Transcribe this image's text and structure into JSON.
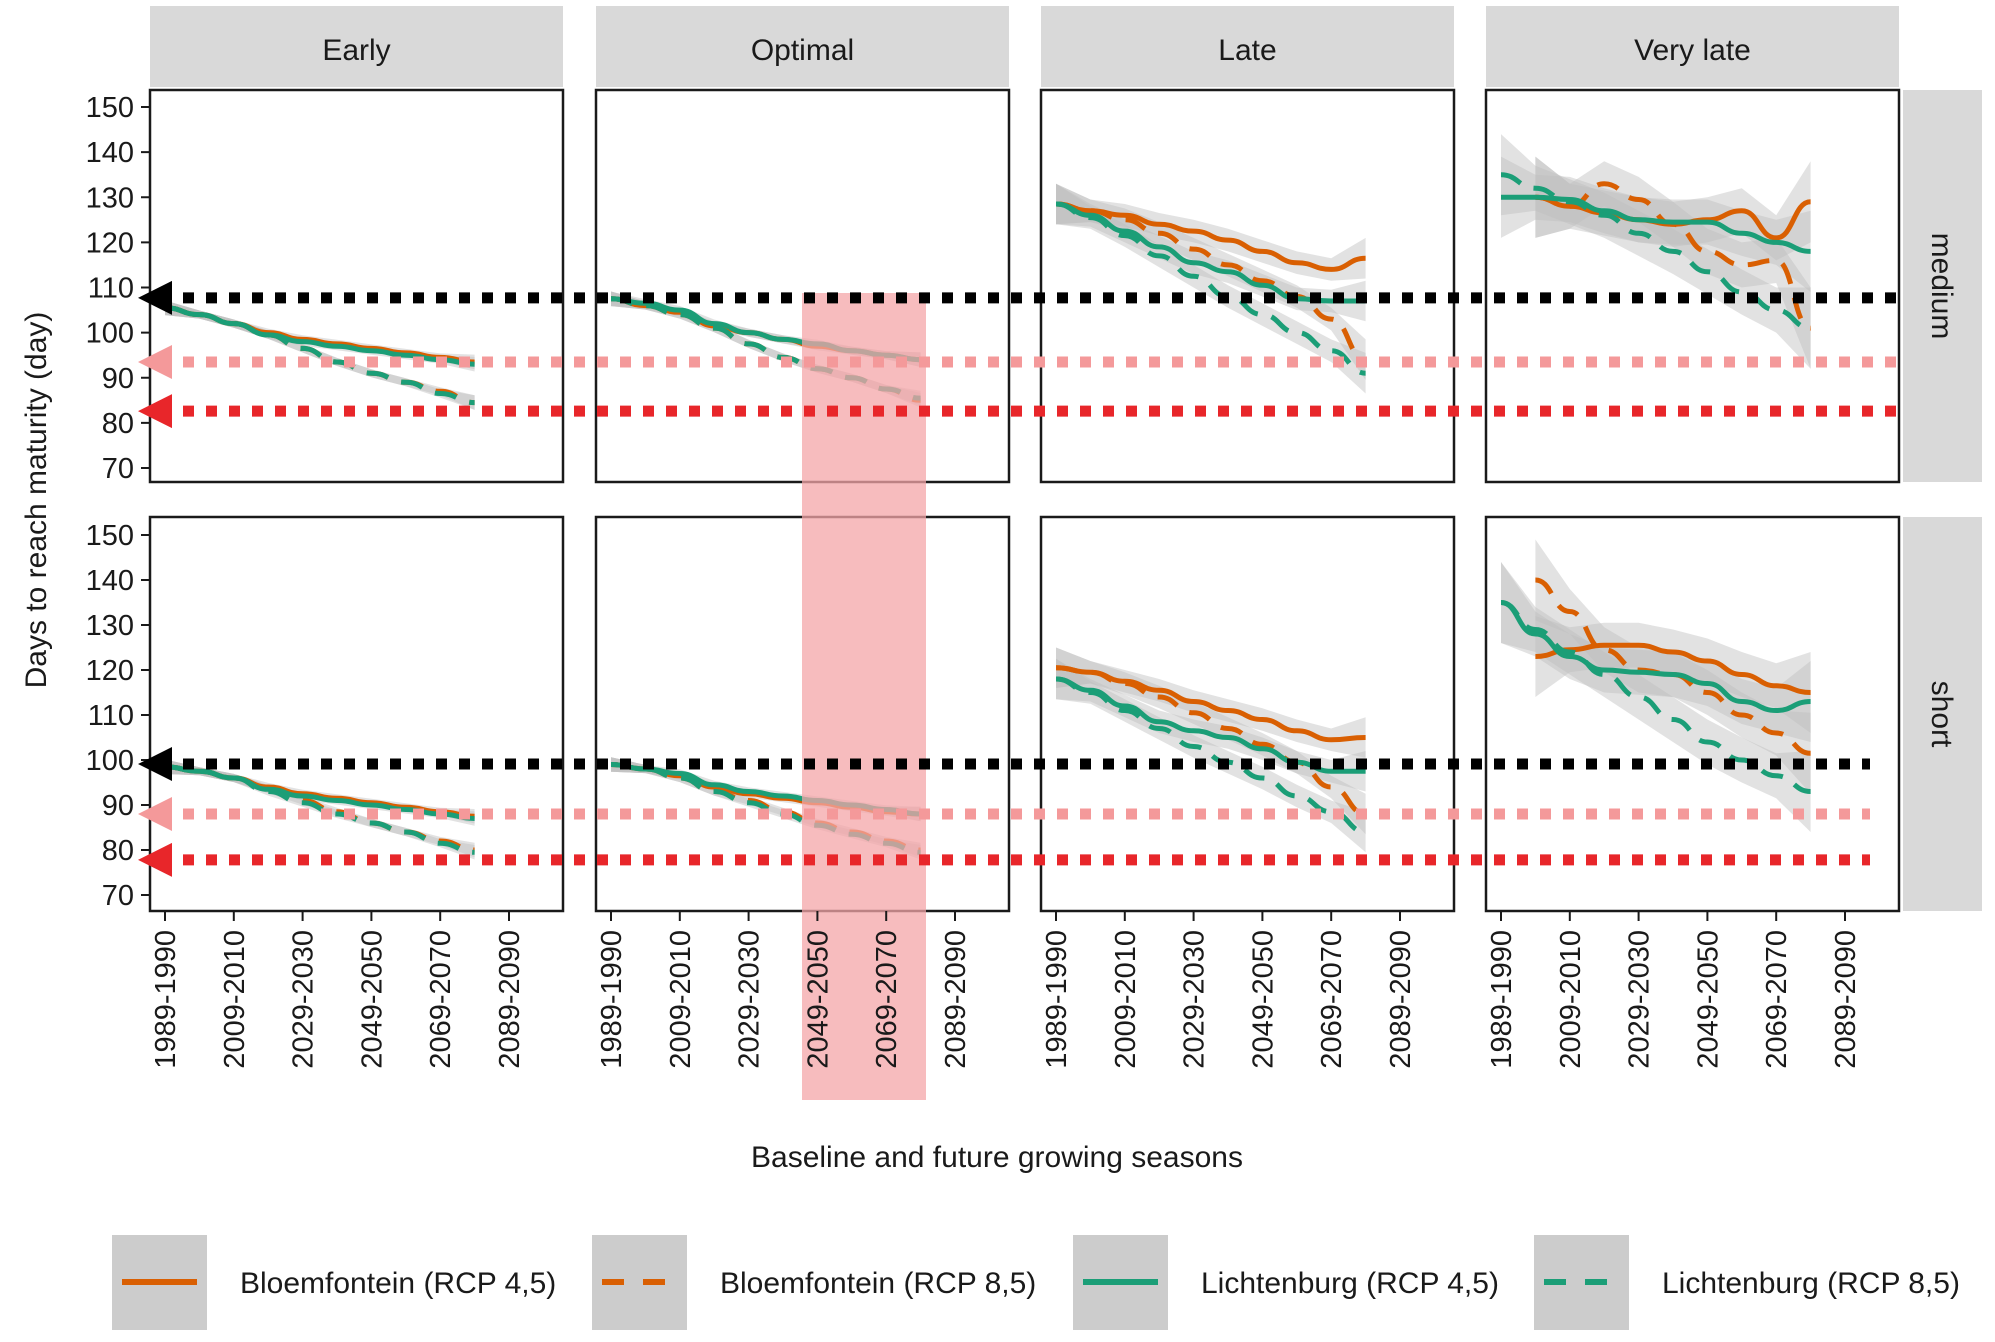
{
  "chart_data": {
    "type": "line",
    "title": "",
    "xlabel": "Baseline and future growing seasons",
    "ylabel": "Days to reach maturity (day)",
    "ylim": [
      67,
      153
    ],
    "xlim": [
      1985,
      2100
    ],
    "y_ticks": [
      70,
      80,
      90,
      100,
      110,
      120,
      130,
      140,
      150
    ],
    "x_ticks": [
      1989,
      2009,
      2029,
      2049,
      2069,
      2089
    ],
    "x_tick_labels": [
      "1989-1990",
      "2009-2010",
      "2029-2030",
      "2049-2050",
      "2069-2070",
      "2089-2090"
    ],
    "grid": false,
    "legend_position": "bottom",
    "columns": [
      "Early",
      "Optimal",
      "Late",
      "Very late"
    ],
    "rows": [
      "medium",
      "short"
    ],
    "legend": [
      {
        "name": "Bloemfontein (RCP 4,5)",
        "color": "#D95F02",
        "dash": "solid"
      },
      {
        "name": "Bloemfontein (RCP 8,5)",
        "color": "#D95F02",
        "dash": "dashed"
      },
      {
        "name": "Lichtenburg (RCP 4,5)",
        "color": "#1B9E77",
        "dash": "solid"
      },
      {
        "name": "Lichtenburg (RCP 8,5)",
        "color": "#1B9E77",
        "dash": "dashed"
      }
    ],
    "reference_lines": {
      "medium": [
        {
          "value": 107.7,
          "color": "#000000"
        },
        {
          "value": 93.5,
          "color": "#F4999A"
        },
        {
          "value": 82.6,
          "color": "#E8262A"
        }
      ],
      "short": [
        {
          "value": 99.1,
          "color": "#000000"
        },
        {
          "value": 88.0,
          "color": "#F4999A"
        },
        {
          "value": 77.8,
          "color": "#E8262A"
        }
      ]
    },
    "highlight": {
      "column": "Optimal",
      "x_range": [
        2043,
        2079
      ],
      "color": "#F4A6A8"
    },
    "x": [
      1989,
      1999,
      2009,
      2019,
      2029,
      2039,
      2049,
      2059,
      2069,
      2079
    ],
    "panels": [
      {
        "row": "medium",
        "column": "Early",
        "series": [
          {
            "name": "Bloemfontein (RCP 4,5)",
            "values": [
              105.5,
              104,
              102,
              100,
              98.5,
              97.5,
              96.5,
              95.5,
              94.5,
              93.5
            ]
          },
          {
            "name": "Bloemfontein (RCP 8,5)",
            "values": [
              105.5,
              104,
              102,
              99.5,
              96.5,
              93.5,
              91,
              89,
              87,
              84.5
            ]
          },
          {
            "name": "Lichtenburg (RCP 4,5)",
            "values": [
              105.5,
              104,
              102,
              99.5,
              98,
              97,
              96,
              95,
              94,
              93
            ]
          },
          {
            "name": "Lichtenburg (RCP 8,5)",
            "values": [
              105.5,
              104,
              102,
              99.5,
              96.5,
              93.5,
              91,
              89,
              86.5,
              84.5
            ]
          }
        ]
      },
      {
        "row": "medium",
        "column": "Optimal",
        "series": [
          {
            "name": "Bloemfontein (RCP 4,5)",
            "values": [
              107.5,
              106,
              104.5,
              101.5,
              100,
              98.5,
              97,
              96,
              95,
              94
            ]
          },
          {
            "name": "Bloemfontein (RCP 8,5)",
            "values": [
              107.5,
              106,
              104,
              101,
              97.5,
              94.5,
              92,
              90,
              87.5,
              85
            ]
          },
          {
            "name": "Lichtenburg (RCP 4,5)",
            "values": [
              107.5,
              106.5,
              105,
              102,
              100,
              98.5,
              97.5,
              96,
              95,
              94
            ]
          },
          {
            "name": "Lichtenburg (RCP 8,5)",
            "values": [
              107.5,
              106,
              104,
              101,
              97.5,
              94.5,
              92,
              90,
              87.5,
              85.5
            ]
          }
        ]
      },
      {
        "row": "medium",
        "column": "Late",
        "series": [
          {
            "name": "Bloemfontein (RCP 4,5)",
            "values": [
              128.5,
              127,
              126,
              124,
              122.5,
              120.5,
              118,
              115.5,
              114,
              116.5
            ]
          },
          {
            "name": "Bloemfontein (RCP 8,5)",
            "values": [
              128.5,
              127,
              125,
              122,
              118.5,
              115,
              111.5,
              108,
              103,
              94
            ]
          },
          {
            "name": "Lichtenburg (RCP 4,5)",
            "values": [
              128.5,
              126,
              122.5,
              119,
              115.5,
              113.5,
              110.5,
              107.5,
              107,
              107
            ]
          },
          {
            "name": "Lichtenburg (RCP 8,5)",
            "values": [
              128.5,
              125.5,
              121.5,
              117,
              112.5,
              108,
              104,
              100,
              96,
              91
            ]
          }
        ]
      },
      {
        "row": "medium",
        "column": "Very late",
        "series": [
          {
            "name": "Bloemfontein (RCP 4,5)",
            "values": [
              null,
              130,
              128,
              126.5,
              125,
              124,
              125,
              127,
              121,
              129
            ]
          },
          {
            "name": "Bloemfontein (RCP 8,5)",
            "values": [
              null,
              130,
              128,
              133,
              129.5,
              124,
              118,
              115,
              116,
              101
            ]
          },
          {
            "name": "Lichtenburg (RCP 4,5)",
            "values": [
              130,
              130,
              129.5,
              127,
              125,
              124.5,
              124.5,
              122,
              120,
              118
            ]
          },
          {
            "name": "Lichtenburg (RCP 8,5)",
            "values": [
              135,
              132,
              129,
              126,
              122,
              118,
              113.5,
              109,
              105,
              101
            ]
          }
        ]
      },
      {
        "row": "short",
        "column": "Early",
        "series": [
          {
            "name": "Bloemfontein (RCP 4,5)",
            "values": [
              98.5,
              97.5,
              96,
              94,
              92.5,
              91.5,
              90.5,
              89.5,
              88.5,
              87.5
            ]
          },
          {
            "name": "Bloemfontein (RCP 8,5)",
            "values": [
              98.5,
              97.5,
              96,
              93.5,
              91,
              88.5,
              86,
              84,
              82,
              80
            ]
          },
          {
            "name": "Lichtenburg (RCP 4,5)",
            "values": [
              98.5,
              97.5,
              96,
              93.5,
              92,
              91,
              90,
              89,
              88,
              87
            ]
          },
          {
            "name": "Lichtenburg (RCP 8,5)",
            "values": [
              98.5,
              97.5,
              96,
              93,
              90.5,
              88,
              86,
              84,
              81.5,
              79.5
            ]
          }
        ]
      },
      {
        "row": "short",
        "column": "Optimal",
        "series": [
          {
            "name": "Bloemfontein (RCP 4,5)",
            "values": [
              99,
              98,
              96.5,
              94,
              92.5,
              91.5,
              90.5,
              89.5,
              88.5,
              88
            ]
          },
          {
            "name": "Bloemfontein (RCP 8,5)",
            "values": [
              99,
              98,
              96,
              93,
              91,
              88.5,
              86,
              84,
              82,
              80
            ]
          },
          {
            "name": "Lichtenburg (RCP 4,5)",
            "values": [
              99,
              98,
              97,
              94.5,
              93,
              92,
              91,
              90,
              89,
              88
            ]
          },
          {
            "name": "Lichtenburg (RCP 8,5)",
            "values": [
              99,
              98,
              96,
              93,
              90.5,
              88,
              85.5,
              83.5,
              81.5,
              79.5
            ]
          }
        ]
      },
      {
        "row": "short",
        "column": "Late",
        "series": [
          {
            "name": "Bloemfontein (RCP 4,5)",
            "values": [
              120.5,
              119.5,
              117.5,
              115.5,
              113,
              111,
              109,
              106.5,
              104.5,
              105
            ]
          },
          {
            "name": "Bloemfontein (RCP 8,5)",
            "values": [
              120.5,
              119.5,
              117,
              114,
              110.5,
              107,
              103.5,
              99.5,
              94,
              88
            ]
          },
          {
            "name": "Lichtenburg (RCP 4,5)",
            "values": [
              118,
              115.5,
              112,
              108.5,
              106.5,
              105,
              102.5,
              99.5,
              97.5,
              97.5
            ]
          },
          {
            "name": "Lichtenburg (RCP 8,5)",
            "values": [
              118,
              115,
              111,
              107,
              103,
              99.5,
              96,
              92,
              88.5,
              84
            ]
          }
        ]
      },
      {
        "row": "short",
        "column": "Very late",
        "series": [
          {
            "name": "Bloemfontein (RCP 4,5)",
            "values": [
              null,
              123,
              124.5,
              125.5,
              125.5,
              124,
              122,
              119,
              116.5,
              115
            ]
          },
          {
            "name": "Bloemfontein (RCP 8,5)",
            "values": [
              null,
              140,
              133,
              124.5,
              120,
              119,
              115,
              110,
              106,
              101.5
            ]
          },
          {
            "name": "Lichtenburg (RCP 4,5)",
            "values": [
              135,
              128,
              123,
              120,
              119.5,
              119,
              117,
              113,
              111,
              113
            ]
          },
          {
            "name": "Lichtenburg (RCP 8,5)",
            "values": [
              135,
              129,
              124,
              119,
              114,
              109,
              104,
              100,
              96.5,
              93
            ]
          }
        ]
      }
    ],
    "ribbon_color": "#BEBEBE"
  }
}
